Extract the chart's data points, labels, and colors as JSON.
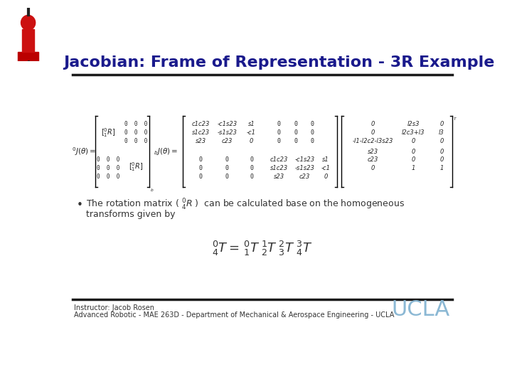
{
  "title": "Jacobian: Frame of Representation - 3R Example",
  "title_color": "#1a1a8c",
  "title_fontsize": 16,
  "bg_color": "#ffffff",
  "footer_line1": "Instructor: Jacob Rosen",
  "footer_line2": "Advanced Robotic - MAE 263D - Department of Mechanical & Aerospace Engineering - UCLA",
  "footer_color": "#333333",
  "footer_fontsize": 7,
  "ucla_color": "#8bb8d4",
  "ucla_fontsize": 22,
  "separator_color": "#1a1a1a",
  "bullet_text1": "The rotation matrix (  )  can be calculated base on the homogeneous",
  "bullet_text2": "transforms given by",
  "main_eq_color": "#333333",
  "main_eq_fontsize": 9
}
